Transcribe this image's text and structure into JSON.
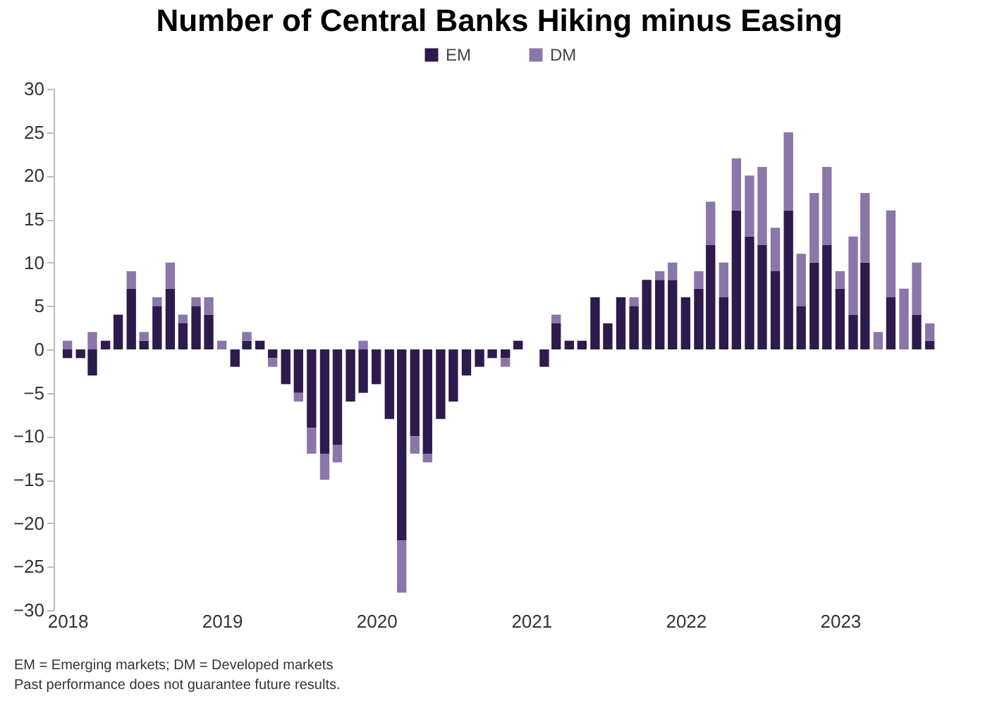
{
  "chart_data": {
    "type": "bar",
    "stacked": true,
    "title": "Number of Central Banks Hiking minus Easing",
    "x": [
      "2018-01",
      "2018-02",
      "2018-03",
      "2018-04",
      "2018-05",
      "2018-06",
      "2018-07",
      "2018-08",
      "2018-09",
      "2018-10",
      "2018-11",
      "2018-12",
      "2019-01",
      "2019-02",
      "2019-03",
      "2019-04",
      "2019-05",
      "2019-06",
      "2019-07",
      "2019-08",
      "2019-09",
      "2019-10",
      "2019-11",
      "2019-12",
      "2020-01",
      "2020-02",
      "2020-03",
      "2020-04",
      "2020-05",
      "2020-06",
      "2020-07",
      "2020-08",
      "2020-09",
      "2020-10",
      "2020-11",
      "2020-12",
      "2021-01",
      "2021-02",
      "2021-03",
      "2021-04",
      "2021-05",
      "2021-06",
      "2021-07",
      "2021-08",
      "2021-09",
      "2021-10",
      "2021-11",
      "2021-12",
      "2022-01",
      "2022-02",
      "2022-03",
      "2022-04",
      "2022-05",
      "2022-06",
      "2022-07",
      "2022-08",
      "2022-09",
      "2022-10",
      "2022-11",
      "2022-12",
      "2023-01",
      "2023-02",
      "2023-03",
      "2023-04",
      "2023-05",
      "2023-06",
      "2023-07",
      "2023-08"
    ],
    "series": [
      {
        "name": "EM",
        "color": "#2e1b4d",
        "values": [
          -1,
          -1,
          -3,
          1,
          4,
          7,
          1,
          5,
          7,
          3,
          5,
          4,
          0,
          -2,
          1,
          1,
          -1,
          -4,
          -5,
          -9,
          -12,
          -11,
          -6,
          -5,
          -4,
          -8,
          -22,
          -10,
          -12,
          -8,
          -6,
          -3,
          -2,
          -1,
          -1,
          1,
          0,
          -2,
          3,
          1,
          1,
          6,
          3,
          6,
          5,
          8,
          8,
          8,
          6,
          7,
          12,
          6,
          16,
          13,
          12,
          9,
          16,
          5,
          10,
          12,
          7,
          4,
          10,
          0,
          6,
          0,
          4,
          1
        ]
      },
      {
        "name": "DM",
        "color": "#8a76a8",
        "values": [
          1,
          0,
          2,
          0,
          0,
          2,
          1,
          1,
          3,
          1,
          1,
          2,
          1,
          0,
          1,
          0,
          -1,
          0,
          -1,
          -3,
          -3,
          -2,
          0,
          1,
          0,
          0,
          -6,
          -2,
          -1,
          0,
          0,
          0,
          0,
          0,
          -1,
          0,
          0,
          0,
          1,
          0,
          0,
          0,
          0,
          0,
          1,
          0,
          1,
          2,
          0,
          2,
          5,
          4,
          6,
          7,
          9,
          5,
          9,
          6,
          8,
          9,
          2,
          9,
          8,
          2,
          10,
          7,
          6,
          2
        ]
      }
    ],
    "xlim": [
      "2017-12-16",
      "2023-08-20"
    ],
    "xticks": [
      "2018",
      "2019",
      "2020",
      "2021",
      "2022",
      "2023"
    ],
    "ylim": [
      -30,
      30
    ],
    "yticks": [
      -30,
      -25,
      -20,
      -15,
      -10,
      -5,
      0,
      5,
      10,
      15,
      20,
      25,
      30
    ],
    "grid": false,
    "legend": "top",
    "annotations": [
      "EM = Emerging markets; DM = Developed markets",
      "Past performance does not guarantee future results."
    ]
  }
}
